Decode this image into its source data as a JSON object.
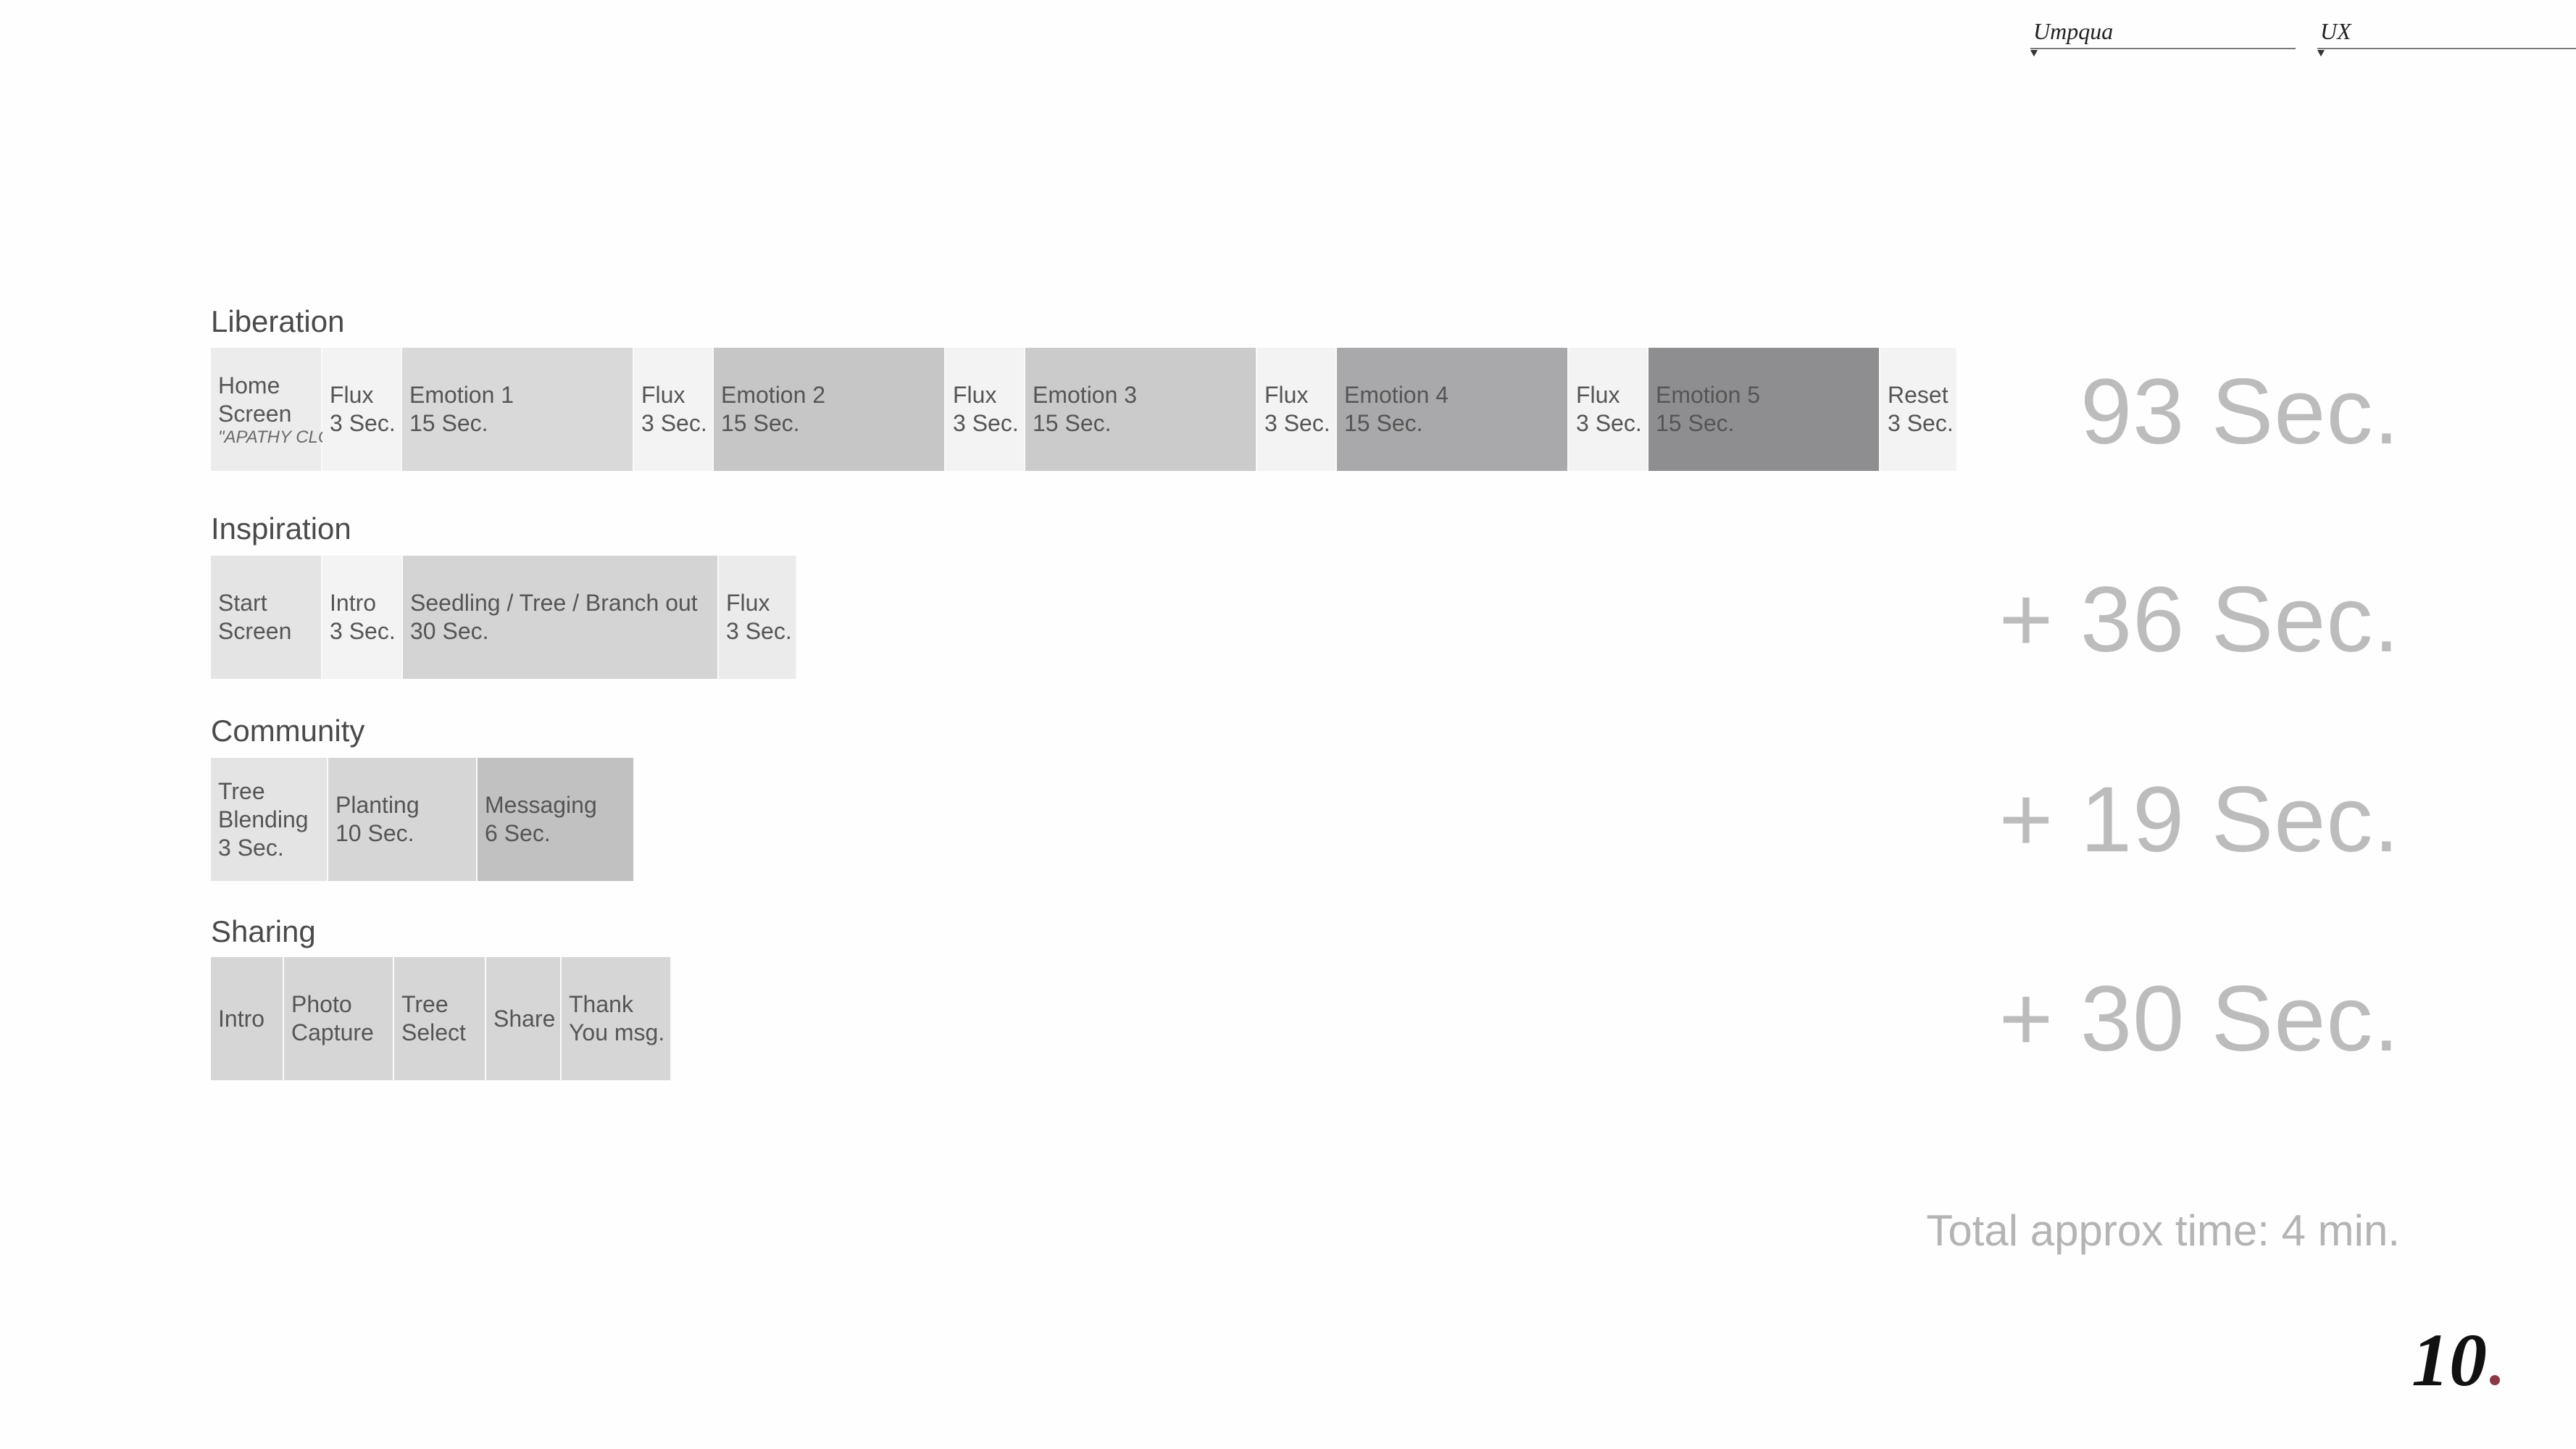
{
  "header": {
    "field1_label": "Umpqua",
    "field2_label": "UX"
  },
  "rows": [
    {
      "title": "Liberation",
      "total": "93 Sec.",
      "segments": [
        {
          "lines": [
            "Home",
            "Screen"
          ],
          "note": "\"APATHY CLOUD\"",
          "color": "#ececec"
        },
        {
          "lines": [
            "Flux",
            "3 Sec."
          ],
          "color": "#f3f3f3"
        },
        {
          "lines": [
            "Emotion 1",
            "15 Sec."
          ],
          "color": "#d9d9d9"
        },
        {
          "lines": [
            "Flux",
            "3 Sec."
          ],
          "color": "#f3f3f3"
        },
        {
          "lines": [
            "Emotion 2",
            "15 Sec."
          ],
          "color": "#c6c6c6"
        },
        {
          "lines": [
            "Flux",
            "3 Sec."
          ],
          "color": "#f3f3f3"
        },
        {
          "lines": [
            "Emotion 3",
            "15 Sec."
          ],
          "color": "#cbcbcb"
        },
        {
          "lines": [
            "Flux",
            "3 Sec."
          ],
          "color": "#f3f3f3"
        },
        {
          "lines": [
            "Emotion 4",
            "15 Sec."
          ],
          "color": "#a9a9ab"
        },
        {
          "lines": [
            "Flux",
            "3 Sec."
          ],
          "color": "#f3f3f3"
        },
        {
          "lines": [
            "Emotion 5",
            "15 Sec."
          ],
          "color": "#8e8e90"
        },
        {
          "lines": [
            "Reset",
            "3 Sec."
          ],
          "color": "#f3f3f3"
        }
      ]
    },
    {
      "title": "Inspiration",
      "total": "+ 36 Sec.",
      "segments": [
        {
          "lines": [
            "Start",
            "Screen"
          ],
          "color": "#e4e4e4"
        },
        {
          "lines": [
            "Intro",
            "3 Sec."
          ],
          "color": "#f3f3f3"
        },
        {
          "lines": [
            "Seedling / Tree / Branch out",
            "30 Sec."
          ],
          "color": "#d4d4d4"
        },
        {
          "lines": [
            "Flux",
            "3 Sec."
          ],
          "color": "#ebebeb"
        }
      ]
    },
    {
      "title": "Community",
      "total": "+ 19 Sec.",
      "segments": [
        {
          "lines": [
            "Tree",
            "Blending",
            "3 Sec."
          ],
          "color": "#e4e4e4"
        },
        {
          "lines": [
            "Planting",
            "10 Sec."
          ],
          "color": "#d6d6d6"
        },
        {
          "lines": [
            "Messaging",
            "6 Sec."
          ],
          "color": "#c1c1c1"
        }
      ]
    },
    {
      "title": "Sharing",
      "total": "+ 30 Sec.",
      "segments": [
        {
          "lines": [
            "Intro"
          ],
          "color": "#d6d6d6"
        },
        {
          "lines": [
            "Photo",
            "Capture"
          ],
          "color": "#d6d6d6"
        },
        {
          "lines": [
            "Tree",
            "Select"
          ],
          "color": "#d6d6d6"
        },
        {
          "lines": [
            "Share"
          ],
          "color": "#d6d6d6"
        },
        {
          "lines": [
            "Thank",
            "You msg."
          ],
          "color": "#d6d6d6"
        }
      ]
    }
  ],
  "total_time": "Total approx time: 4 min.",
  "page_number": "10"
}
